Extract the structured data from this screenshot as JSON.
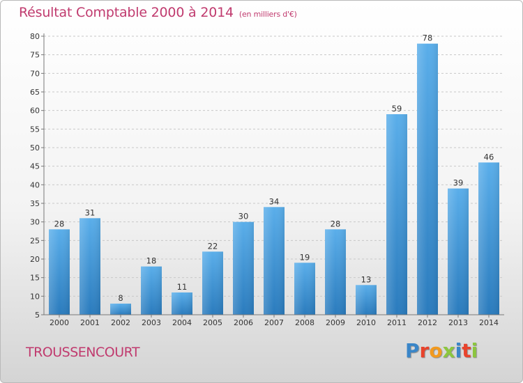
{
  "title": "Résultat Comptable 2000 à 2014",
  "subtitle": "(en milliers d'€)",
  "commune": "TROUSSENCOURT",
  "logo": {
    "letters": [
      "P",
      "r",
      "o",
      "x",
      "i",
      "t",
      "i"
    ],
    "colors": [
      "#3a86c8",
      "#e8432c",
      "#f29a1f",
      "#8cc63f",
      "#3a86c8",
      "#e8432c",
      "#8cc63f"
    ]
  },
  "colors": {
    "bar_top": "#5aaeea",
    "bar_bottom": "#2a7bbd",
    "title": "#c03a6e"
  },
  "chart_data": {
    "type": "bar",
    "categories": [
      "2000",
      "2001",
      "2002",
      "2003",
      "2004",
      "2005",
      "2006",
      "2007",
      "2008",
      "2009",
      "2010",
      "2011",
      "2012",
      "2013",
      "2014"
    ],
    "values": [
      28,
      31,
      8,
      18,
      11,
      22,
      30,
      34,
      19,
      28,
      13,
      59,
      78,
      39,
      46
    ],
    "ylim": [
      5,
      80
    ],
    "yticks": [
      5,
      10,
      15,
      20,
      25,
      30,
      35,
      40,
      45,
      50,
      55,
      60,
      65,
      70,
      75,
      80
    ],
    "grid": true
  }
}
